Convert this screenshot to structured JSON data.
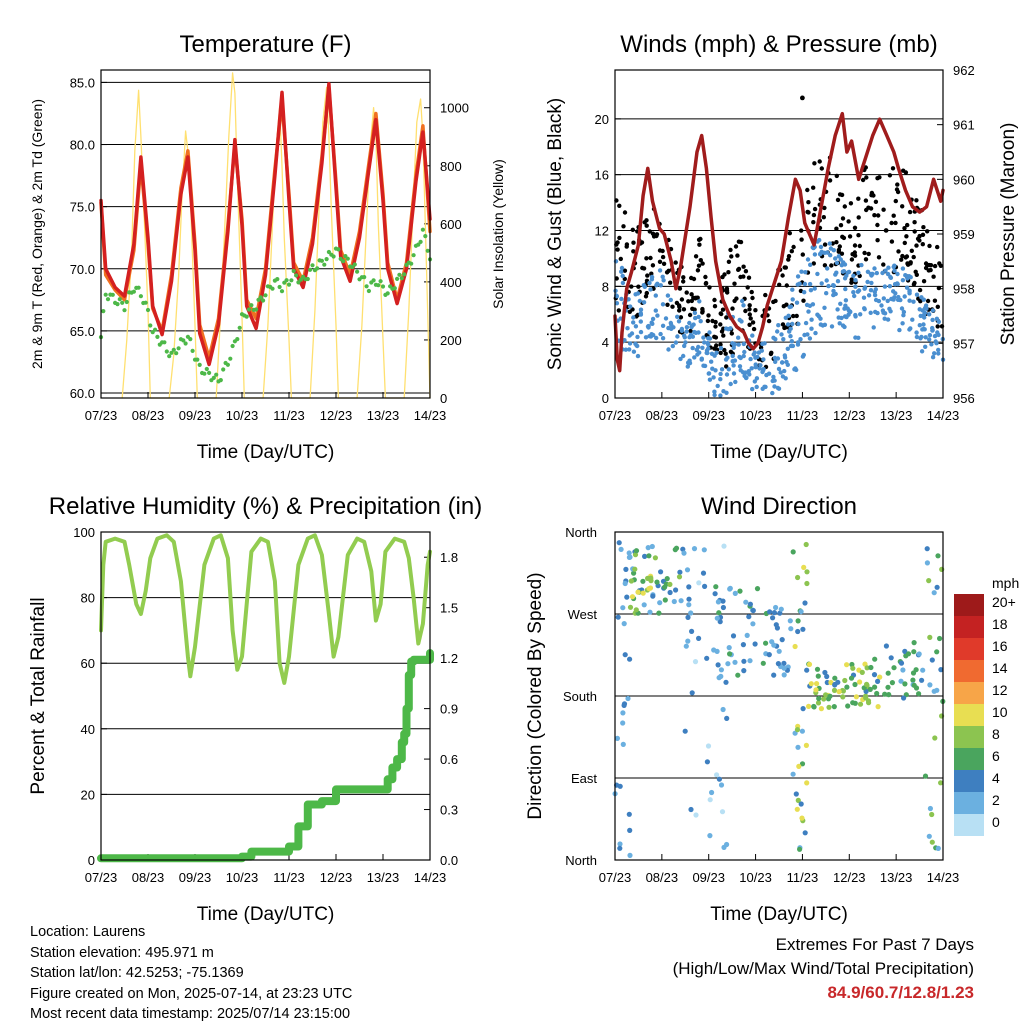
{
  "chart_data": [
    {
      "type": "line",
      "title": "Temperature (F)",
      "xlabel": "Time (Day/UTC)",
      "ylabel": "2m & 9m T (Red, Orange) & 2m Td (Green)",
      "y2label": "Solar Insolation (Yellow)",
      "x_ticks": [
        "07/23",
        "08/23",
        "09/23",
        "10/23",
        "11/23",
        "12/23",
        "13/23",
        "14/23"
      ],
      "y_ticks": [
        "60.0",
        "65.0",
        "70.0",
        "75.0",
        "80.0",
        "85.0"
      ],
      "y2_ticks": [
        "0",
        "200",
        "400",
        "600",
        "800",
        "1000"
      ],
      "ylim": [
        59.6,
        86.0
      ],
      "y2lim": [
        0,
        1130
      ],
      "colors": {
        "t2m": "#d42020",
        "t9m": "#f07020",
        "td2m": "#4db848",
        "solar": "#ffe070"
      },
      "series": [
        {
          "key": "t9m",
          "x": [
            0,
            0.1,
            0.3,
            0.5,
            0.7,
            0.85,
            1.0,
            1.1,
            1.3,
            1.5,
            1.7,
            1.85,
            2.0,
            2.1,
            2.3,
            2.5,
            2.7,
            2.85,
            3.0,
            3.1,
            3.3,
            3.5,
            3.7,
            3.85,
            4.0,
            4.1,
            4.3,
            4.5,
            4.7,
            4.85,
            5.0,
            5.1,
            5.3,
            5.5,
            5.7,
            5.85,
            6.0,
            6.1,
            6.3,
            6.5,
            6.7,
            6.85,
            7.0
          ],
          "y": [
            75.3,
            69.5,
            68.3,
            67.5,
            71.5,
            78.5,
            72.0,
            66.8,
            65.0,
            69.5,
            76.5,
            79.5,
            72.0,
            65.5,
            62.8,
            66.0,
            73.5,
            80.0,
            74.0,
            67.5,
            66.0,
            70.0,
            78.0,
            83.5,
            76.0,
            70.5,
            69.0,
            72.5,
            79.0,
            84.5,
            77.0,
            71.5,
            69.5,
            73.0,
            78.5,
            82.5,
            76.0,
            70.5,
            67.5,
            70.5,
            77.5,
            81.5,
            73.0
          ]
        },
        {
          "key": "t2m",
          "x": [
            0,
            0.1,
            0.3,
            0.5,
            0.7,
            0.85,
            1.0,
            1.1,
            1.3,
            1.5,
            1.7,
            1.85,
            2.0,
            2.1,
            2.3,
            2.5,
            2.7,
            2.85,
            3.0,
            3.1,
            3.3,
            3.5,
            3.7,
            3.85,
            4.0,
            4.1,
            4.3,
            4.5,
            4.7,
            4.85,
            5.0,
            5.1,
            5.3,
            5.5,
            5.7,
            5.85,
            6.0,
            6.1,
            6.3,
            6.5,
            6.7,
            6.85,
            7.0
          ],
          "y": [
            75.5,
            70.0,
            68.5,
            67.8,
            72.0,
            79.0,
            72.5,
            67.0,
            64.7,
            69.0,
            76.0,
            79.0,
            71.5,
            64.8,
            62.3,
            65.5,
            73.0,
            80.4,
            73.5,
            67.0,
            65.2,
            69.5,
            77.5,
            84.2,
            75.5,
            70.0,
            68.5,
            72.0,
            78.5,
            84.9,
            76.5,
            71.0,
            69.0,
            72.5,
            78.0,
            82.0,
            75.5,
            70.0,
            67.2,
            70.0,
            77.0,
            81.0,
            74.0
          ]
        },
        {
          "key": "td2m",
          "x": [
            0,
            0.1,
            0.3,
            0.5,
            0.7,
            0.85,
            1.0,
            1.1,
            1.3,
            1.5,
            1.7,
            1.85,
            2.0,
            2.1,
            2.3,
            2.5,
            2.7,
            2.85,
            3.0,
            3.1,
            3.3,
            3.5,
            3.7,
            3.85,
            4.0,
            4.1,
            4.3,
            4.5,
            4.7,
            4.85,
            5.0,
            5.1,
            5.3,
            5.5,
            5.7,
            5.85,
            6.0,
            6.1,
            6.3,
            6.5,
            6.7,
            6.85,
            7.0
          ],
          "y": [
            64.5,
            68.0,
            67.5,
            67.0,
            68.5,
            68.0,
            66.5,
            65.0,
            64.0,
            63.0,
            64.0,
            64.5,
            63.0,
            62.0,
            61.5,
            61.0,
            62.5,
            64.0,
            66.0,
            66.5,
            67.0,
            68.0,
            69.0,
            68.5,
            69.0,
            69.5,
            69.0,
            70.0,
            70.5,
            71.0,
            71.5,
            71.0,
            70.5,
            69.5,
            68.5,
            69.0,
            68.5,
            68.0,
            69.0,
            70.0,
            71.5,
            73.0,
            71.0
          ]
        },
        {
          "key": "solar",
          "x": [
            0.45,
            0.55,
            0.65,
            0.72,
            0.8,
            0.85,
            0.9,
            1.0,
            1.05,
            1.45,
            1.55,
            1.65,
            1.72,
            1.8,
            1.85,
            1.9,
            2.0,
            2.05,
            2.45,
            2.55,
            2.65,
            2.72,
            2.8,
            2.85,
            2.9,
            3.0,
            3.05,
            3.45,
            3.55,
            3.65,
            3.72,
            3.8,
            3.85,
            3.9,
            4.0,
            4.05,
            4.45,
            4.55,
            4.65,
            4.72,
            4.8,
            4.85,
            4.9,
            5.0,
            5.05,
            5.45,
            5.55,
            5.65,
            5.72,
            5.8,
            5.85,
            5.9,
            6.0,
            6.05,
            6.45,
            6.55,
            6.65,
            6.72,
            6.8,
            6.85,
            6.9,
            7.0
          ],
          "y": [
            0,
            200,
            500,
            850,
            1060,
            900,
            700,
            300,
            0,
            0,
            150,
            420,
            680,
            920,
            850,
            700,
            250,
            0,
            0,
            300,
            650,
            900,
            1120,
            1050,
            760,
            280,
            0,
            0,
            250,
            600,
            850,
            1000,
            800,
            550,
            200,
            0,
            0,
            300,
            700,
            950,
            1070,
            900,
            650,
            250,
            0,
            0,
            250,
            600,
            850,
            1000,
            900,
            600,
            200,
            0,
            0,
            300,
            700,
            950,
            1030,
            900,
            600,
            0
          ]
        }
      ]
    },
    {
      "type": "scatter",
      "title": "Winds (mph) & Pressure (mb)",
      "xlabel": "Time (Day/UTC)",
      "ylabel": "Sonic Wind & Gust (Blue, Black)",
      "y2label": "Station Pressure (Maroon)",
      "x_ticks": [
        "07/23",
        "08/23",
        "09/23",
        "10/23",
        "11/23",
        "12/23",
        "13/23",
        "14/23"
      ],
      "y_ticks": [
        "0",
        "4",
        "8",
        "12",
        "16",
        "20"
      ],
      "y2_ticks": [
        "956",
        "957",
        "958",
        "959",
        "960",
        "961",
        "962"
      ],
      "ylim": [
        0,
        23.5
      ],
      "y2lim": [
        956,
        962
      ],
      "colors": {
        "wind": "#4a8fd0",
        "gust": "#000000",
        "pressure": "#a01c1c"
      },
      "pressure": {
        "x": [
          0,
          0.05,
          0.1,
          0.15,
          0.25,
          0.35,
          0.5,
          0.6,
          0.7,
          0.8,
          0.95,
          1.05,
          1.2,
          1.3,
          1.4,
          1.6,
          1.75,
          1.85,
          1.95,
          2.05,
          2.15,
          2.3,
          2.45,
          2.6,
          2.75,
          2.85,
          2.95,
          3.05,
          3.15,
          3.25,
          3.4,
          3.55,
          3.7,
          3.85,
          3.95,
          4.05,
          4.25,
          4.4,
          4.55,
          4.7,
          4.85,
          4.95,
          5.05,
          5.2,
          5.35,
          5.5,
          5.65,
          5.8,
          5.95,
          6.05,
          6.2,
          6.35,
          6.5,
          6.65,
          6.8,
          6.95,
          7.0
        ],
        "y": [
          957.5,
          956.7,
          956.5,
          957.2,
          958.0,
          958.3,
          958.8,
          959.7,
          960.2,
          959.6,
          959.1,
          959.0,
          958.5,
          958.0,
          958.4,
          959.5,
          960.5,
          960.8,
          960.2,
          959.3,
          958.5,
          957.8,
          957.5,
          957.3,
          957.2,
          957.0,
          956.9,
          957.0,
          957.3,
          957.7,
          958.1,
          958.5,
          959.3,
          960.0,
          959.8,
          959.2,
          958.8,
          959.5,
          960.2,
          960.8,
          961.2,
          960.5,
          960.7,
          960.0,
          960.4,
          960.8,
          961.1,
          960.8,
          960.5,
          960.2,
          959.8,
          959.5,
          959.4,
          959.5,
          960.0,
          959.6,
          959.8
        ]
      },
      "wind_bands": {
        "x": [
          0,
          0.3,
          0.6,
          0.9,
          1.2,
          1.5,
          1.8,
          2.1,
          2.4,
          2.7,
          3.0,
          3.3,
          3.6,
          3.9,
          4.2,
          4.5,
          4.8,
          5.1,
          5.4,
          5.7,
          6.0,
          6.3,
          6.6,
          6.9,
          7.0
        ],
        "low": [
          3,
          3,
          3,
          4,
          3,
          2,
          3,
          0,
          0,
          2,
          0,
          0,
          1,
          2,
          4,
          5,
          5,
          4,
          5,
          5,
          5,
          4,
          3,
          2,
          1
        ],
        "high": [
          12,
          7,
          8,
          10,
          7,
          5,
          7,
          4,
          6,
          8,
          4,
          5,
          6,
          9,
          11,
          12,
          10,
          9,
          10,
          9,
          10,
          9,
          7,
          6,
          5
        ]
      },
      "gust_bands": {
        "x": [
          0,
          0.3,
          0.6,
          0.9,
          1.2,
          1.5,
          1.8,
          2.1,
          2.4,
          2.7,
          3.0,
          3.3,
          3.6,
          3.9,
          4.2,
          4.5,
          4.8,
          5.1,
          5.4,
          5.7,
          6.0,
          6.3,
          6.6,
          6.9,
          7.0
        ],
        "low": [
          6,
          5,
          6,
          8,
          6,
          4,
          6,
          2,
          2,
          5,
          2,
          2,
          4,
          5,
          8,
          9,
          9,
          8,
          9,
          9,
          9,
          8,
          6,
          4,
          3
        ],
        "high": [
          18,
          12,
          13,
          15,
          11,
          9,
          12,
          7,
          10,
          13,
          7,
          8,
          11,
          15,
          17,
          18,
          16,
          15,
          17,
          16,
          17,
          16,
          13,
          11,
          9
        ]
      },
      "gust_max": 12.8
    },
    {
      "type": "line",
      "title": "Relative Humidity (%) & Precipitation (in)",
      "xlabel": "Time (Day/UTC)",
      "ylabel": "Percent & Total Rainfall",
      "x_ticks": [
        "07/23",
        "08/23",
        "09/23",
        "10/23",
        "11/23",
        "12/23",
        "13/23",
        "14/23"
      ],
      "y_ticks": [
        "0",
        "20",
        "40",
        "60",
        "80",
        "100"
      ],
      "y2_ticks": [
        "0.0",
        "0.3",
        "0.6",
        "0.9",
        "1.2",
        "1.5",
        "1.8"
      ],
      "ylim": [
        0,
        100
      ],
      "y2lim": [
        0,
        1.95
      ],
      "colors": {
        "rh": "#92cc50",
        "precip": "#4db848"
      },
      "series": [
        {
          "key": "rh",
          "x": [
            0,
            0.05,
            0.1,
            0.3,
            0.5,
            0.6,
            0.75,
            0.85,
            0.95,
            1.05,
            1.2,
            1.4,
            1.55,
            1.7,
            1.85,
            1.9,
            2.0,
            2.2,
            2.4,
            2.55,
            2.7,
            2.8,
            2.9,
            3.0,
            3.2,
            3.4,
            3.55,
            3.7,
            3.8,
            3.9,
            4.0,
            4.2,
            4.4,
            4.55,
            4.7,
            4.85,
            4.95,
            5.05,
            5.25,
            5.45,
            5.6,
            5.75,
            5.85,
            5.95,
            6.05,
            6.25,
            6.45,
            6.55,
            6.65,
            6.75,
            6.85,
            6.95,
            7.0
          ],
          "y": [
            70,
            90,
            97,
            98,
            97,
            90,
            78,
            75,
            82,
            92,
            98,
            99,
            97,
            85,
            62,
            56,
            65,
            90,
            98,
            99,
            92,
            70,
            58,
            62,
            94,
            98,
            97,
            85,
            60,
            54,
            62,
            90,
            98,
            99,
            93,
            75,
            62,
            68,
            93,
            98,
            97,
            88,
            73,
            78,
            94,
            98,
            97,
            92,
            80,
            66,
            72,
            90,
            94
          ]
        },
        {
          "key": "precip",
          "x": [
            0,
            0.5,
            1.0,
            1.5,
            2.0,
            2.5,
            3.0,
            3.2,
            3.5,
            3.8,
            4.0,
            4.2,
            4.4,
            4.7,
            5.0,
            5.5,
            6.0,
            6.1,
            6.2,
            6.3,
            6.4,
            6.45,
            6.5,
            6.55,
            6.6,
            6.65,
            7.0
          ],
          "y": [
            0.01,
            0.01,
            0.01,
            0.01,
            0.01,
            0.01,
            0.02,
            0.05,
            0.05,
            0.05,
            0.08,
            0.2,
            0.33,
            0.35,
            0.42,
            0.42,
            0.42,
            0.48,
            0.55,
            0.6,
            0.7,
            0.75,
            0.9,
            1.1,
            1.18,
            1.19,
            1.23
          ]
        }
      ]
    },
    {
      "type": "scatter",
      "title": "Wind Direction",
      "xlabel": "Time (Day/UTC)",
      "ylabel": "Direction (Colored By Speed)",
      "x_ticks": [
        "07/23",
        "08/23",
        "09/23",
        "10/23",
        "11/23",
        "12/23",
        "13/23",
        "14/23"
      ],
      "y_ticks": [
        "North",
        "East",
        "South",
        "West",
        "North"
      ],
      "colorbar": {
        "title": "mph",
        "labels": [
          "20+",
          "18",
          "16",
          "14",
          "12",
          "10",
          "8",
          "6",
          "4",
          "2",
          "0"
        ],
        "colors": [
          "#9e1a1a",
          "#c42222",
          "#e03a2a",
          "#f06a30",
          "#f7a548",
          "#e8de52",
          "#8cc450",
          "#4aa55e",
          "#3e7fc0",
          "#6bb0e0",
          "#b8e0f4"
        ]
      },
      "clusters": [
        {
          "x0": 0.0,
          "x1": 0.35,
          "dir0": 0,
          "dir1": 355,
          "n": 26,
          "s0": 1,
          "s1": 5
        },
        {
          "x0": 0.2,
          "x1": 1.4,
          "dir0": 270,
          "dir1": 350,
          "n": 46,
          "s0": 2,
          "s1": 9
        },
        {
          "x0": 0.35,
          "x1": 0.8,
          "dir0": 280,
          "dir1": 320,
          "n": 12,
          "s0": 6,
          "s1": 11
        },
        {
          "x0": 1.4,
          "x1": 2.4,
          "dir0": 5,
          "dir1": 350,
          "n": 40,
          "s0": 0,
          "s1": 5
        },
        {
          "x0": 2.1,
          "x1": 3.3,
          "dir0": 200,
          "dir1": 300,
          "n": 46,
          "s0": 1,
          "s1": 6
        },
        {
          "x0": 3.3,
          "x1": 3.85,
          "dir0": 200,
          "dir1": 280,
          "n": 22,
          "s0": 1,
          "s1": 5
        },
        {
          "x0": 3.8,
          "x1": 4.1,
          "dir0": 10,
          "dir1": 350,
          "n": 34,
          "s0": 2,
          "s1": 11
        },
        {
          "x0": 4.1,
          "x1": 5.7,
          "dir0": 165,
          "dir1": 215,
          "n": 70,
          "s0": 4,
          "s1": 11
        },
        {
          "x0": 5.5,
          "x1": 6.6,
          "dir0": 175,
          "dir1": 240,
          "n": 34,
          "s0": 2,
          "s1": 7
        },
        {
          "x0": 6.6,
          "x1": 7.0,
          "dir0": 0,
          "dir1": 355,
          "n": 26,
          "s0": 1,
          "s1": 8
        }
      ]
    }
  ],
  "info": {
    "location": "Location: Laurens",
    "elevation": "Station elevation: 495.971 m",
    "latlon": "Station lat/lon: 42.5253; -75.1369",
    "created": "Figure created on Mon, 2025-07-14, at 23:23 UTC",
    "timestamp": "Most recent data timestamp: 2025/07/14 23:15:00"
  },
  "extremes": {
    "line1": "Extremes For Past 7 Days",
    "line2": "(High/Low/Max Wind/Total Precipitation)",
    "values": "84.9/60.7/12.8/1.23"
  }
}
